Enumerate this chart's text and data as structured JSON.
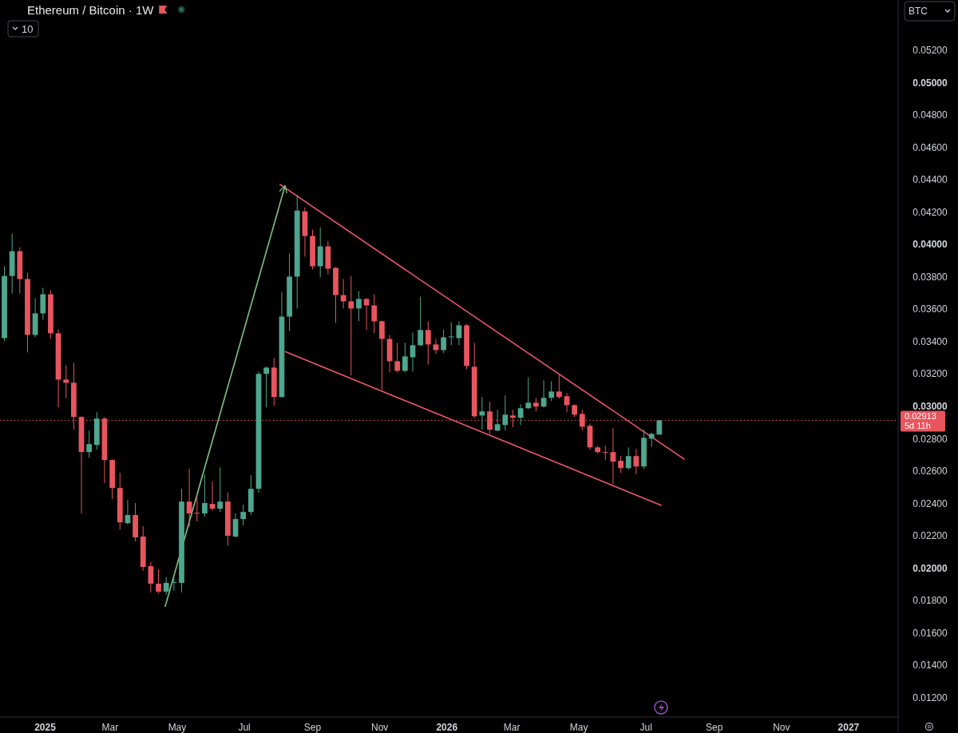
{
  "chart_data": {
    "type": "candlestick",
    "title": "Ethereum / Bitcoin · 1W",
    "ylabel": "BTC",
    "annotations": [
      "10",
      "5d 11h"
    ],
    "xlim": [
      "2024-11-21",
      "2027-02-15"
    ],
    "xticks": [
      {
        "value": "2025-01-01",
        "label": "2025"
      },
      {
        "value": "2025-03-01",
        "label": "Mar"
      },
      {
        "value": "2025-05-01",
        "label": "May"
      },
      {
        "value": "2025-07-01",
        "label": "Jul"
      },
      {
        "value": "2025-09-01",
        "label": "Sep"
      },
      {
        "value": "2025-11-01",
        "label": "Nov"
      },
      {
        "value": "2026-01-01",
        "label": "2026"
      },
      {
        "value": "2026-03-01",
        "label": "Mar"
      },
      {
        "value": "2026-05-01",
        "label": "May"
      },
      {
        "value": "2026-07-01",
        "label": "Jul"
      },
      {
        "value": "2026-09-01",
        "label": "Sep"
      },
      {
        "value": "2026-11-01",
        "label": "Nov"
      },
      {
        "value": "2027-01-01",
        "label": "2027"
      }
    ],
    "ylim": [
      0.0108,
      0.0551
    ],
    "yticks": [
      {
        "value": 0.012,
        "label": "0.01200"
      },
      {
        "value": 0.014,
        "label": "0.01400"
      },
      {
        "value": 0.016,
        "label": "0.01600"
      },
      {
        "value": 0.018,
        "label": "0.01800"
      },
      {
        "value": 0.02,
        "label": "0.02000"
      },
      {
        "value": 0.022,
        "label": "0.02200"
      },
      {
        "value": 0.024,
        "label": "0.02400"
      },
      {
        "value": 0.026,
        "label": "0.02600"
      },
      {
        "value": 0.028,
        "label": "0.02800"
      },
      {
        "value": 0.03,
        "label": "0.03000"
      },
      {
        "value": 0.032,
        "label": "0.03200"
      },
      {
        "value": 0.034,
        "label": "0.03400"
      },
      {
        "value": 0.036,
        "label": "0.03600"
      },
      {
        "value": 0.038,
        "label": "0.03800"
      },
      {
        "value": 0.04,
        "label": "0.04000"
      },
      {
        "value": 0.042,
        "label": "0.04200"
      },
      {
        "value": 0.044,
        "label": "0.04400"
      },
      {
        "value": 0.046,
        "label": "0.04600"
      },
      {
        "value": 0.048,
        "label": "0.04800"
      },
      {
        "value": 0.05,
        "label": "0.05000"
      },
      {
        "value": 0.052,
        "label": "0.05200"
      }
    ],
    "ref_lines": [
      {
        "axis": "y",
        "value": 0.02913,
        "label": "0.02913",
        "color": "#e8555f",
        "line_style": "dotted"
      }
    ],
    "series": [
      {
        "type": "line",
        "color": "#f0566a",
        "x": [
          "2025-08-02",
          "2026-08-05"
        ],
        "values": [
          0.04372,
          0.02672
        ]
      },
      {
        "type": "line",
        "color": "#f0566a",
        "x": [
          "2025-08-07",
          "2026-07-15"
        ],
        "values": [
          0.03338,
          0.02387
        ]
      },
      {
        "type": "line",
        "color": "#7fc47f",
        "x": [
          "2025-04-20",
          "2025-08-07"
        ],
        "values": [
          0.01761,
          0.04363
        ]
      },
      {
        "color": "#4ea68f",
        "x": [
          "2024-11-25",
          "2024-12-02",
          "2024-12-23",
          "2024-12-30",
          "2025-02-10",
          "2025-02-17",
          "2025-03-17",
          "2025-04-21",
          "2025-04-28",
          "2025-05-05",
          "2025-05-26",
          "2025-06-09",
          "2025-06-23",
          "2025-06-30",
          "2025-07-07",
          "2025-07-14",
          "2025-07-21",
          "2025-08-04",
          "2025-08-11",
          "2025-08-18",
          "2025-09-08",
          "2025-10-13",
          "2025-11-24",
          "2025-12-01",
          "2025-12-08",
          "2025-12-29",
          "2026-01-05",
          "2026-01-12",
          "2026-02-02",
          "2026-02-16",
          "2026-02-23",
          "2026-03-09",
          "2026-03-16",
          "2026-03-30",
          "2026-04-06",
          "2026-06-15",
          "2026-06-29",
          "2026-07-06",
          "2026-07-13"
        ],
        "ohlc": [
          [
            0.03421,
            0.03865,
            0.03402,
            0.03805
          ],
          [
            0.03805,
            0.04067,
            0.03697,
            0.03958
          ],
          [
            0.03441,
            0.03668,
            0.03426,
            0.03574
          ],
          [
            0.03574,
            0.03732,
            0.03535,
            0.03692
          ],
          [
            0.02717,
            0.0285,
            0.02682,
            0.02766
          ],
          [
            0.02761,
            0.02963,
            0.02732,
            0.02924
          ],
          [
            0.02278,
            0.02421,
            0.02269,
            0.02328
          ],
          [
            0.01855,
            0.01943,
            0.01835,
            0.01909
          ],
          [
            0.01909,
            0.01943,
            0.0186,
            0.01914
          ],
          [
            0.01909,
            0.0249,
            0.0185,
            0.02411
          ],
          [
            0.02338,
            0.02579,
            0.02318,
            0.02402
          ],
          [
            0.02367,
            0.02623,
            0.02347,
            0.02411
          ],
          [
            0.02195,
            0.02338,
            0.0219,
            0.02303
          ],
          [
            0.02303,
            0.02392,
            0.02264,
            0.02347
          ],
          [
            0.02347,
            0.02574,
            0.02328,
            0.0249
          ],
          [
            0.0249,
            0.03214,
            0.02466,
            0.032
          ],
          [
            0.032,
            0.03244,
            0.02993,
            0.03239
          ],
          [
            0.03057,
            0.03707,
            0.03055,
            0.03554
          ],
          [
            0.03554,
            0.03943,
            0.03466,
            0.03801
          ],
          [
            0.03801,
            0.04308,
            0.03604,
            0.04209
          ],
          [
            0.03865,
            0.04106,
            0.03796,
            0.03988
          ],
          [
            0.03604,
            0.03712,
            0.03525,
            0.03663
          ],
          [
            0.03219,
            0.03392,
            0.03209,
            0.03308
          ],
          [
            0.03303,
            0.03456,
            0.03214,
            0.03377
          ],
          [
            0.03377,
            0.03677,
            0.03372,
            0.03471
          ],
          [
            0.03347,
            0.03475,
            0.03328,
            0.03426
          ],
          [
            0.03426,
            0.0352,
            0.03377,
            0.03431
          ],
          [
            0.03421,
            0.03525,
            0.03377,
            0.035
          ],
          [
            0.02943,
            0.03057,
            0.02855,
            0.02968
          ],
          [
            0.0285,
            0.02978,
            0.02845,
            0.02889
          ],
          [
            0.02884,
            0.03067,
            0.0285,
            0.02948
          ],
          [
            0.02929,
            0.03012,
            0.02884,
            0.02988
          ],
          [
            0.02988,
            0.0318,
            0.02983,
            0.03022
          ],
          [
            0.02998,
            0.0316,
            0.02993,
            0.03052
          ],
          [
            0.03052,
            0.03155,
            0.03032,
            0.03091
          ],
          [
            0.02618,
            0.02746,
            0.02608,
            0.02692
          ],
          [
            0.02628,
            0.02855,
            0.02613,
            0.02805
          ],
          [
            0.028,
            0.02835,
            0.02751,
            0.0283
          ],
          [
            0.02825,
            0.02915,
            0.02825,
            0.02913
          ]
        ]
      },
      {
        "color": "#e8555f",
        "x": [
          "2024-12-09",
          "2024-12-16",
          "2025-01-06",
          "2025-01-13",
          "2025-01-20",
          "2025-01-27",
          "2025-02-03",
          "2025-02-24",
          "2025-03-03",
          "2025-03-10",
          "2025-03-24",
          "2025-03-31",
          "2025-04-07",
          "2025-04-14",
          "2025-05-12",
          "2025-05-19",
          "2025-06-02",
          "2025-06-16",
          "2025-07-28",
          "2025-08-25",
          "2025-09-01",
          "2025-09-15",
          "2025-09-22",
          "2025-09-29",
          "2025-10-06",
          "2025-10-20",
          "2025-10-27",
          "2025-11-03",
          "2025-11-10",
          "2025-11-17",
          "2025-12-15",
          "2025-12-22",
          "2026-01-19",
          "2026-01-26",
          "2026-02-09",
          "2026-03-02",
          "2026-03-23",
          "2026-04-13",
          "2026-04-20",
          "2026-04-27",
          "2026-05-04",
          "2026-05-11",
          "2026-05-18",
          "2026-05-25",
          "2026-06-01",
          "2026-06-08",
          "2026-06-22"
        ],
        "ohlc": [
          [
            0.03958,
            0.03983,
            0.03697,
            0.03786
          ],
          [
            0.03786,
            0.03825,
            0.03333,
            0.03441
          ],
          [
            0.03692,
            0.03717,
            0.03416,
            0.03451
          ],
          [
            0.03451,
            0.03475,
            0.02993,
            0.03165
          ],
          [
            0.03165,
            0.03254,
            0.03052,
            0.03145
          ],
          [
            0.03145,
            0.03269,
            0.02855,
            0.02934
          ],
          [
            0.02934,
            0.02938,
            0.02338,
            0.02717
          ],
          [
            0.02924,
            0.02934,
            0.02525,
            0.02668
          ],
          [
            0.02668,
            0.02672,
            0.02426,
            0.02495
          ],
          [
            0.02495,
            0.02589,
            0.02239,
            0.02283
          ],
          [
            0.02328,
            0.02402,
            0.02165,
            0.0219
          ],
          [
            0.02195,
            0.02259,
            0.01983,
            0.02007
          ],
          [
            0.02012,
            0.02037,
            0.0185,
            0.01904
          ],
          [
            0.01904,
            0.01993,
            0.01845,
            0.01855
          ],
          [
            0.02411,
            0.02613,
            0.02254,
            0.02338
          ],
          [
            0.02342,
            0.02451,
            0.02288,
            0.02338
          ],
          [
            0.02397,
            0.02535,
            0.02357,
            0.02367
          ],
          [
            0.02411,
            0.02466,
            0.0214,
            0.022
          ],
          [
            0.03239,
            0.03298,
            0.03003,
            0.03057
          ],
          [
            0.04204,
            0.04229,
            0.03924,
            0.04052
          ],
          [
            0.04052,
            0.04091,
            0.03845,
            0.03865
          ],
          [
            0.03988,
            0.04022,
            0.03815,
            0.0385
          ],
          [
            0.03855,
            0.0386,
            0.03515,
            0.03687
          ],
          [
            0.03687,
            0.03786,
            0.03604,
            0.03648
          ],
          [
            0.03648,
            0.03805,
            0.0319,
            0.03604
          ],
          [
            0.03663,
            0.03668,
            0.03471,
            0.03623
          ],
          [
            0.03623,
            0.03692,
            0.03451,
            0.03525
          ],
          [
            0.03525,
            0.0353,
            0.03101,
            0.03416
          ],
          [
            0.03416,
            0.03441,
            0.03209,
            0.03278
          ],
          [
            0.03278,
            0.03392,
            0.03209,
            0.03219
          ],
          [
            0.03471,
            0.03525,
            0.03259,
            0.03382
          ],
          [
            0.03382,
            0.03416,
            0.03323,
            0.03347
          ],
          [
            0.035,
            0.0351,
            0.03229,
            0.03249
          ],
          [
            0.03244,
            0.03392,
            0.02928,
            0.02938
          ],
          [
            0.02968,
            0.03027,
            0.0283,
            0.02855
          ],
          [
            0.02943,
            0.02978,
            0.0287,
            0.02929
          ],
          [
            0.03022,
            0.03052,
            0.02968,
            0.02998
          ],
          [
            0.03091,
            0.03195,
            0.03047,
            0.03057
          ],
          [
            0.03062,
            0.03081,
            0.02963,
            0.03007
          ],
          [
            0.03007,
            0.03012,
            0.02933,
            0.02948
          ],
          [
            0.02953,
            0.02978,
            0.0285,
            0.02874
          ],
          [
            0.02879,
            0.02894,
            0.02732,
            0.02746
          ],
          [
            0.02746,
            0.02756,
            0.02707,
            0.02717
          ],
          [
            0.02717,
            0.02756,
            0.02668,
            0.02715
          ],
          [
            0.02717,
            0.02865,
            0.0252,
            0.02658
          ],
          [
            0.02663,
            0.02692,
            0.02589,
            0.02618
          ],
          [
            0.02692,
            0.02737,
            0.02579,
            0.02628
          ]
        ]
      }
    ]
  }
}
